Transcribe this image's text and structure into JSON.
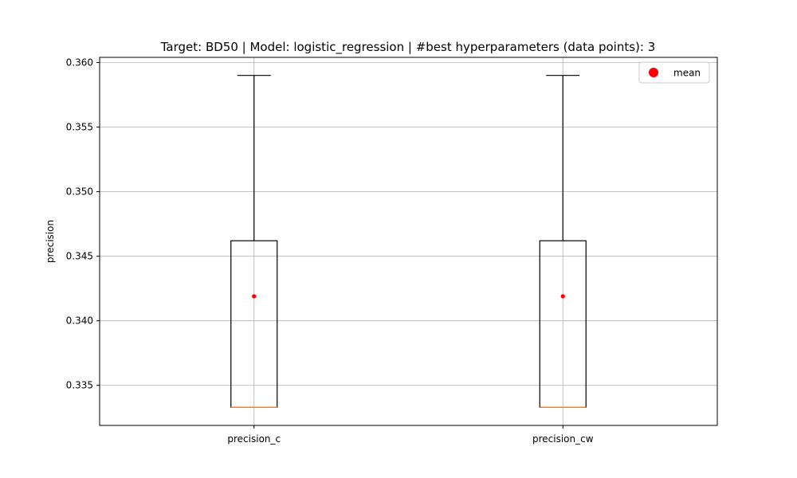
{
  "chart_data": {
    "type": "box",
    "title": "Target: BD50 | Model: logistic_regression | #best hyperparameters (data points): 3",
    "xlabel": "",
    "ylabel": "precision",
    "ylim": [
      0.3319,
      0.3604
    ],
    "yticks": [
      0.335,
      0.34,
      0.345,
      0.35,
      0.355,
      0.36
    ],
    "ytick_labels": [
      "0.335",
      "0.340",
      "0.345",
      "0.350",
      "0.355",
      "0.360"
    ],
    "categories": [
      "precision_c",
      "precision_cw"
    ],
    "boxes": [
      {
        "label": "precision_c",
        "whisker_low": 0.3333,
        "q1": 0.3333,
        "median": 0.3333,
        "q3": 0.3462,
        "whisker_high": 0.359,
        "mean": 0.3419
      },
      {
        "label": "precision_cw",
        "whisker_low": 0.3333,
        "q1": 0.3333,
        "median": 0.3333,
        "q3": 0.3462,
        "whisker_high": 0.359,
        "mean": 0.3419
      }
    ],
    "grid": true,
    "legend": {
      "position": "top-right",
      "entries": [
        {
          "label": "mean",
          "color": "#ff0000",
          "marker": "circle"
        }
      ]
    },
    "colors": {
      "box": "#000000",
      "median": "#ff7f0e",
      "mean": "#ff0000",
      "grid": "#b0b0b0"
    }
  }
}
